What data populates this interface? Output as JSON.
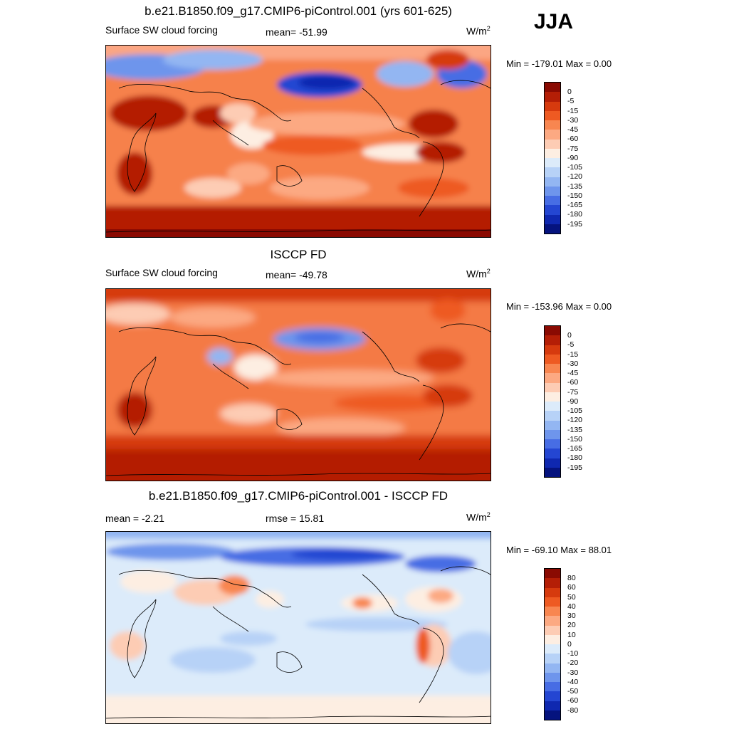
{
  "season": "JJA",
  "panels": [
    {
      "title": "b.e21.B1850.f09_g17.CMIP6-piControl.001 (yrs 601-625)",
      "left_label": "Surface SW cloud forcing",
      "center_label": "mean= -51.99",
      "units_base": "W/m",
      "units_exp": "2",
      "minmax": "Min = -179.01 Max =    0.00",
      "colorbar_labels": [
        "0",
        "-5",
        "-15",
        "-30",
        "-45",
        "-60",
        "-75",
        "-90",
        "-105",
        "-120",
        "-135",
        "-150",
        "-165",
        "-180",
        "-195"
      ],
      "colors": [
        "#8a0a02",
        "#b41e06",
        "#d63a0e",
        "#ee5a22",
        "#f88650",
        "#fca982",
        "#fdccb4",
        "#fdeee2",
        "#dcebfa",
        "#b7d2f7",
        "#93b6f2",
        "#6e95ec",
        "#476de4",
        "#2446d2",
        "#0f28b0",
        "#05137e"
      ]
    },
    {
      "title": "ISCCP FD",
      "left_label": "Surface SW cloud forcing",
      "center_label": "mean= -49.78",
      "units_base": "W/m",
      "units_exp": "2",
      "minmax": "Min = -153.96 Max =    0.00",
      "colorbar_labels": [
        "0",
        "-5",
        "-15",
        "-30",
        "-45",
        "-60",
        "-75",
        "-90",
        "-105",
        "-120",
        "-135",
        "-150",
        "-165",
        "-180",
        "-195"
      ],
      "colors": [
        "#8a0a02",
        "#b41e06",
        "#d63a0e",
        "#ee5a22",
        "#f88650",
        "#fca982",
        "#fdccb4",
        "#fdeee2",
        "#dcebfa",
        "#b7d2f7",
        "#93b6f2",
        "#6e95ec",
        "#476de4",
        "#2446d2",
        "#0f28b0",
        "#05137e"
      ]
    },
    {
      "title": "b.e21.B1850.f09_g17.CMIP6-piControl.001 - ISCCP FD",
      "left_label": "mean =  -2.21",
      "center_label": "rmse =  15.81",
      "units_base": "W/m",
      "units_exp": "2",
      "minmax": "Min = -69.10 Max =  88.01",
      "colorbar_labels": [
        "80",
        "60",
        "50",
        "40",
        "30",
        "20",
        "10",
        "0",
        "-10",
        "-20",
        "-30",
        "-40",
        "-50",
        "-60",
        "-80"
      ],
      "colors": [
        "#8a0a02",
        "#b41e06",
        "#d63a0e",
        "#ee5a22",
        "#f88650",
        "#fca982",
        "#fdccb4",
        "#fdeee2",
        "#dcebfa",
        "#b7d2f7",
        "#93b6f2",
        "#6e95ec",
        "#476de4",
        "#2446d2",
        "#0f28b0",
        "#05137e"
      ]
    }
  ]
}
